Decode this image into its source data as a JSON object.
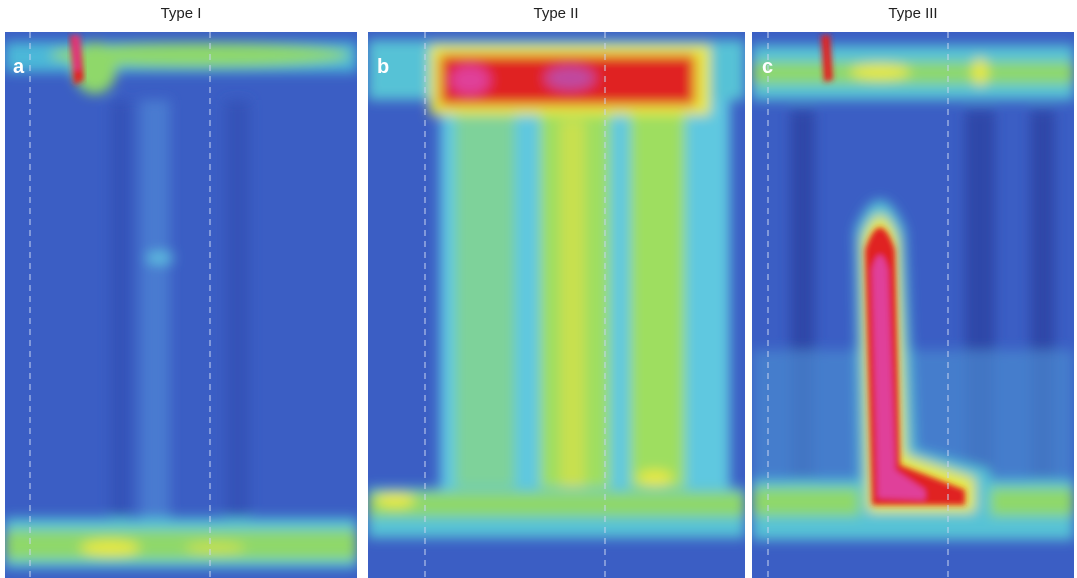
{
  "panels": [
    {
      "title": "Type I",
      "label": "a"
    },
    {
      "title": "Type II",
      "label": "b"
    },
    {
      "title": "Type III",
      "label": "c"
    }
  ]
}
